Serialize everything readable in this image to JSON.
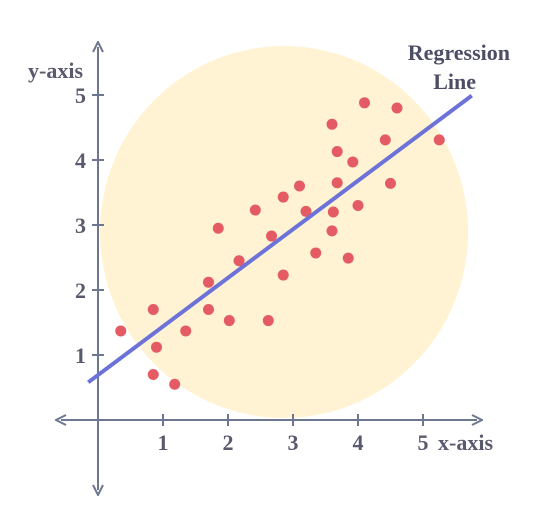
{
  "chart_data": {
    "type": "scatter",
    "xlabel": "x-axis",
    "ylabel": "y-axis",
    "xlim": [
      -1,
      5.7
    ],
    "ylim": [
      -1,
      5.7
    ],
    "x_ticks": [
      1,
      2,
      3,
      4,
      5
    ],
    "y_ticks": [
      1,
      2,
      3,
      4,
      5
    ],
    "x_tick_labels": [
      "1",
      "2",
      "3",
      "4",
      "5"
    ],
    "y_tick_labels": [
      "1",
      "2",
      "3",
      "4",
      "5"
    ],
    "annotation": {
      "lines": [
        "Regression",
        "Line"
      ]
    },
    "series": [
      {
        "points": [
          {
            "x": 0.35,
            "y": 1.37
          },
          {
            "x": 0.85,
            "y": 1.7
          },
          {
            "x": 0.9,
            "y": 1.12
          },
          {
            "x": 0.85,
            "y": 0.7
          },
          {
            "x": 1.18,
            "y": 0.55
          },
          {
            "x": 1.35,
            "y": 1.37
          },
          {
            "x": 1.7,
            "y": 1.7
          },
          {
            "x": 1.7,
            "y": 2.12
          },
          {
            "x": 1.85,
            "y": 2.95
          },
          {
            "x": 2.02,
            "y": 1.53
          },
          {
            "x": 2.17,
            "y": 2.45
          },
          {
            "x": 2.42,
            "y": 3.23
          },
          {
            "x": 2.62,
            "y": 1.53
          },
          {
            "x": 2.67,
            "y": 2.83
          },
          {
            "x": 2.85,
            "y": 3.43
          },
          {
            "x": 2.85,
            "y": 2.23
          },
          {
            "x": 3.1,
            "y": 3.6
          },
          {
            "x": 3.2,
            "y": 3.21
          },
          {
            "x": 3.35,
            "y": 2.57
          },
          {
            "x": 3.6,
            "y": 4.55
          },
          {
            "x": 3.6,
            "y": 2.91
          },
          {
            "x": 3.62,
            "y": 3.2
          },
          {
            "x": 3.68,
            "y": 3.65
          },
          {
            "x": 3.68,
            "y": 4.13
          },
          {
            "x": 3.85,
            "y": 2.49
          },
          {
            "x": 3.92,
            "y": 3.97
          },
          {
            "x": 4.0,
            "y": 3.3
          },
          {
            "x": 4.1,
            "y": 4.88
          },
          {
            "x": 4.42,
            "y": 4.31
          },
          {
            "x": 4.5,
            "y": 3.64
          },
          {
            "x": 4.6,
            "y": 4.8
          },
          {
            "x": 5.25,
            "y": 4.31
          }
        ]
      }
    ],
    "regression": {
      "x1": -0.15,
      "y1": 0.58,
      "x2": 5.75,
      "y2": 4.99
    },
    "colors": {
      "points": "#e45b64",
      "line": "#6c72d8",
      "ellipse": "#fff3d4",
      "axes": "#6e7790",
      "text": "#5a5a6e"
    },
    "legend": "none",
    "grid": false
  }
}
